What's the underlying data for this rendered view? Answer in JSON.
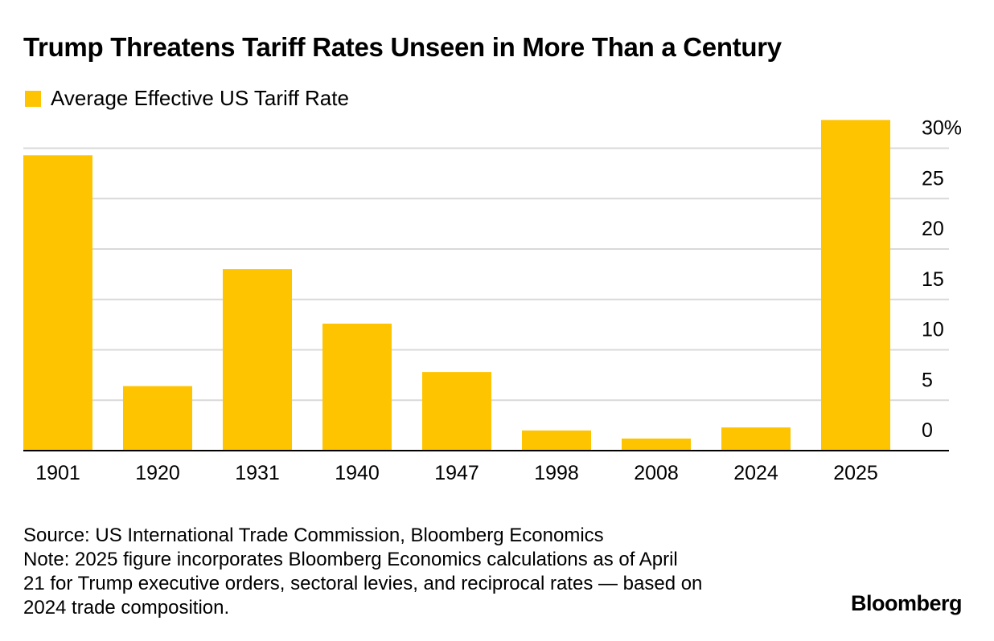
{
  "title": "Trump Threatens Tariff Rates Unseen in More Than a Century",
  "legend": {
    "label": "Average Effective US Tariff Rate",
    "color": "#FFC400"
  },
  "chart_data": {
    "type": "bar",
    "categories": [
      "1901",
      "1920",
      "1931",
      "1940",
      "1947",
      "1998",
      "2008",
      "2024",
      "2025"
    ],
    "series": [
      {
        "name": "Average Effective US Tariff Rate",
        "values": [
          29.3,
          6.4,
          18.0,
          12.6,
          7.8,
          2.0,
          1.2,
          2.3,
          32.8
        ],
        "color": "#FFC400"
      }
    ],
    "ylim": [
      0,
      33
    ],
    "yticks": [
      0,
      5,
      10,
      15,
      20,
      25,
      30
    ],
    "ytick_labels": [
      "0",
      "5",
      "10",
      "15",
      "20",
      "25",
      "30%"
    ],
    "y_axis_side": "right",
    "grid": true,
    "legend_position": "top-left"
  },
  "footer": {
    "source": "Source: US International Trade Commission, Bloomberg Economics",
    "note": "Note: 2025 figure incorporates Bloomberg Economics calculations as of April\n21 for Trump executive orders, sectoral levies, and reciprocal rates — based on\n2024 trade composition."
  },
  "brand": "Bloomberg"
}
